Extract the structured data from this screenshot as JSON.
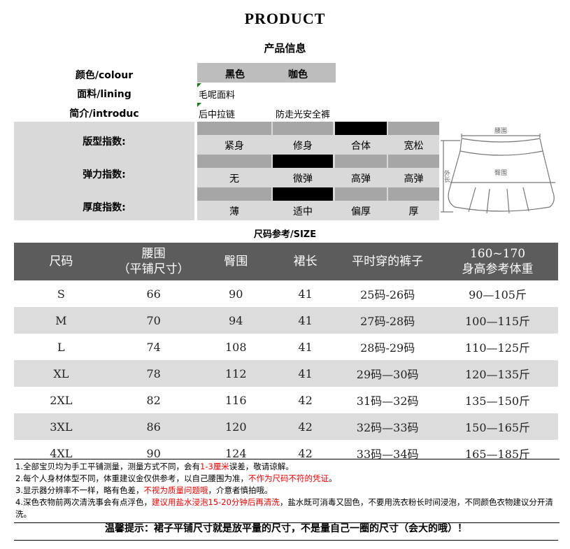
{
  "header": {
    "title": "PRODUCT",
    "subtitle": "产品信息"
  },
  "info": {
    "colour_label": "颜色/colour",
    "colours": [
      "黑色",
      "咖色"
    ],
    "lining_label": "面料/lining",
    "lining": "毛呢面料",
    "intro_label": "简介/introduc",
    "intro": [
      "后中拉链",
      "防走光安全裤"
    ]
  },
  "indices": [
    {
      "label": "版型指数:",
      "options": [
        "紧身",
        "修身",
        "合体",
        "宽松"
      ],
      "selected": 2
    },
    {
      "label": "弹力指数:",
      "options": [
        "无",
        "微弹",
        "高弹",
        "高弹"
      ],
      "selected": 1
    },
    {
      "label": "厚度指数:",
      "options": [
        "薄",
        "适中",
        "偏厚",
        "厚"
      ],
      "selected": 1
    }
  ],
  "diagram": {
    "waist": "腰围",
    "hip": "臀围",
    "length": "外长"
  },
  "size_title": "尺码参考/SIZE",
  "size_table": {
    "headers": [
      "尺码",
      "腰围\n（平铺尺寸）",
      "臀围",
      "裙长",
      "平时穿的裤子",
      "160~170\n身高参考体重"
    ],
    "rows": [
      [
        "S",
        "66",
        "90",
        "41",
        "25码-26码",
        "90—105斤"
      ],
      [
        "M",
        "70",
        "94",
        "41",
        "27码-28码",
        "100—115斤"
      ],
      [
        "L",
        "74",
        "108",
        "41",
        "28码-29码",
        "110—125斤"
      ],
      [
        "XL",
        "78",
        "112",
        "41",
        "29码—30码",
        "120—135斤"
      ],
      [
        "2XL",
        "82",
        "116",
        "42",
        "31码—32码",
        "135—150斤"
      ],
      [
        "3XL",
        "86",
        "120",
        "42",
        "32码—33码",
        "150—165斤"
      ],
      [
        "4XL",
        "90",
        "124",
        "42",
        "33码—34码",
        "165—185斤"
      ]
    ]
  },
  "notes": [
    {
      "a": "1.全部宝贝均为手工平铺测量，测量方式不同，会有",
      "red": "1-3厘米",
      "b": "误差，敬请谅解。"
    },
    {
      "a": "2.每个人身材体型不同，体重建议金仅供参考，以自己腰围为准，",
      "red": "不作为尺码不符的凭证",
      "b": "。"
    },
    {
      "a": "3.显示器分辨率不一样，略有色差，",
      "red": "不视为质量问题哦",
      "b": "，介意者慎拍哦。"
    },
    {
      "a": "4.深色衣物前两次清洗事会有点浮色，",
      "red": "建议用盐水浸泡15-20分钟后再清洗",
      "b": "，盐水既可消毒又固色，不要用洗衣粉长时间浸泡，不同颜色衣物建议分开清洗。"
    }
  ],
  "tip": "温馨提示：裙子平铺尺寸就是放平量的尺寸，不是量自己一圈的尺寸（会大的哦）！",
  "colors": {
    "bar_selected": "#000000",
    "bar_default": "#a6a6a6",
    "panel": "#d9d9d9",
    "header_bg": "#5c5c5c",
    "highlight": "#ee0000"
  }
}
